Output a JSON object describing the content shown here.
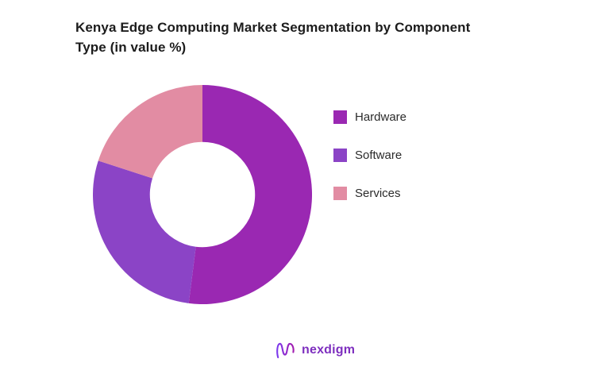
{
  "title": {
    "full": "Kenya Edge Computing Market Segmentation by Component Type (in value %)",
    "line1": "Kenya Edge Computing Market Segmentation by Component",
    "line2": "Type (in value %)"
  },
  "chart_data": {
    "type": "pie",
    "subtype": "donut",
    "title": "Kenya Edge Computing Market Segmentation by Component Type (in value %)",
    "unit": "value %",
    "categories": [
      "Hardware",
      "Software",
      "Services"
    ],
    "values": [
      52,
      28,
      20
    ],
    "colors": [
      "#9a28b2",
      "#8b44c6",
      "#e28ca3"
    ],
    "start_angle": "top",
    "direction": "clockwise",
    "inner_radius_ratio": 0.48,
    "legend_position": "right",
    "data_labels": "none"
  },
  "legend": {
    "items": [
      {
        "label": "Hardware",
        "color": "#9a28b2"
      },
      {
        "label": "Software",
        "color": "#8b44c6"
      },
      {
        "label": "Services",
        "color": "#e28ca3"
      }
    ]
  },
  "logo": {
    "text": "nexdigm",
    "icon": "nexdigm-n-squiggle",
    "gradient_start": "#7c3aed",
    "gradient_end": "#a21caf"
  },
  "background_color": "#ffffff"
}
